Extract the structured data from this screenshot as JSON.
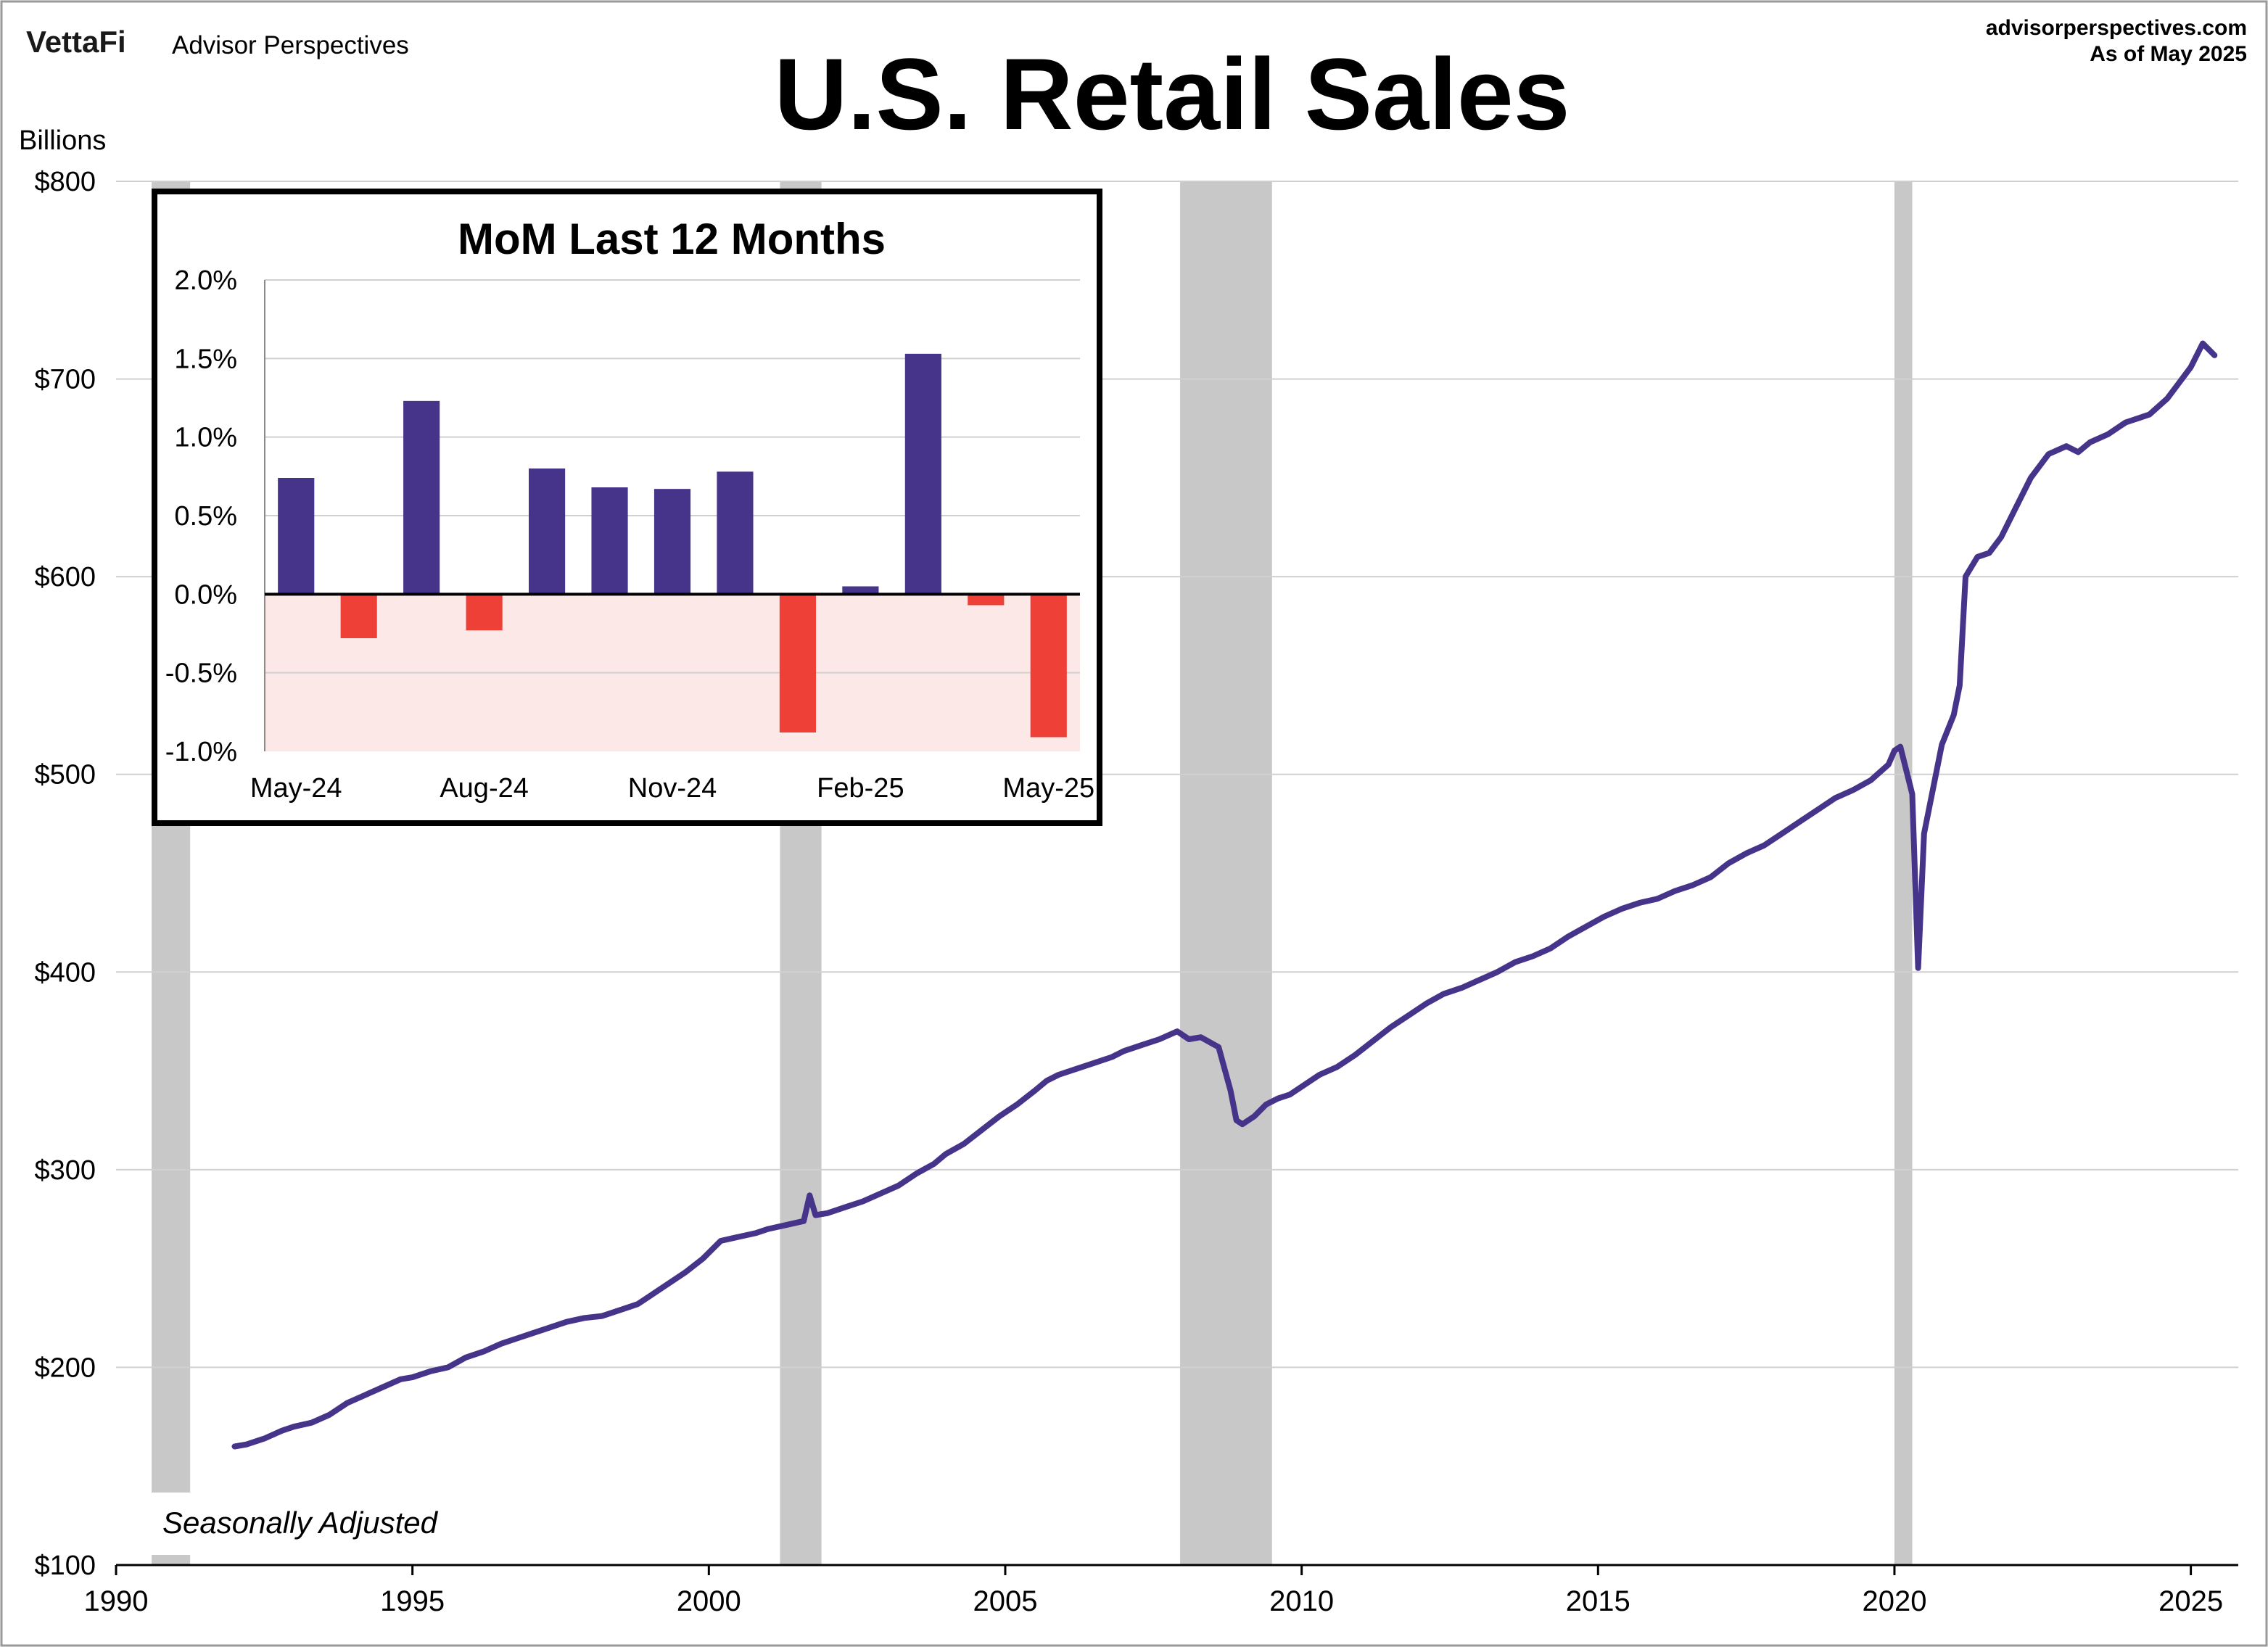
{
  "header": {
    "brand": "VettaFi",
    "brand_sub": "Advisor Perspectives",
    "title": "U.S. Retail Sales",
    "site": "advisorperspectives.com",
    "as_of": "As of May 2025"
  },
  "colors": {
    "line": "#46338a",
    "recession": "#c8c8c8",
    "bar_pos": "#46338a",
    "bar_neg": "#ee4036",
    "neg_zone": "#fde8e8",
    "grid": "#d0d0d0"
  },
  "chart_data": [
    {
      "type": "line",
      "title": "U.S. Retail Sales",
      "ylabel": "Billions",
      "annotation": "Seasonally Adjusted",
      "xlim": [
        1990,
        2025.8
      ],
      "ylim": [
        100,
        800
      ],
      "xticks": [
        "1990",
        "1995",
        "2000",
        "2005",
        "2010",
        "2015",
        "2020",
        "2025"
      ],
      "yticks": [
        "$100",
        "$200",
        "$300",
        "$400",
        "$500",
        "$600",
        "$700",
        "$800"
      ],
      "recessions": [
        [
          1990.6,
          1991.25
        ],
        [
          2001.2,
          2001.9
        ],
        [
          2007.95,
          2009.5
        ],
        [
          2020.0,
          2020.3
        ]
      ],
      "series": [
        {
          "x": [
            1992.0,
            1992.2,
            1992.5,
            1992.8,
            1993.0,
            1993.3,
            1993.6,
            1993.9,
            1994.2,
            1994.5,
            1994.8,
            1995.0,
            1995.3,
            1995.6,
            1995.9,
            1996.2,
            1996.5,
            1996.8,
            1997.0,
            1997.3,
            1997.6,
            1997.9,
            1998.2,
            1998.5,
            1998.8,
            1999.0,
            1999.3,
            1999.6,
            1999.9,
            2000.0,
            2000.2,
            2000.5,
            2000.8,
            2001.0,
            2001.3,
            2001.6,
            2001.7,
            2001.8,
            2002.0,
            2002.3,
            2002.6,
            2002.9,
            2003.2,
            2003.5,
            2003.8,
            2004.0,
            2004.3,
            2004.6,
            2004.9,
            2005.2,
            2005.5,
            2005.7,
            2005.9,
            2006.2,
            2006.5,
            2006.8,
            2007.0,
            2007.3,
            2007.6,
            2007.9,
            2008.1,
            2008.3,
            2008.6,
            2008.8,
            2008.9,
            2009.0,
            2009.2,
            2009.4,
            2009.6,
            2009.8,
            2010.0,
            2010.3,
            2010.6,
            2010.9,
            2011.2,
            2011.5,
            2011.8,
            2012.1,
            2012.4,
            2012.7,
            2013.0,
            2013.3,
            2013.6,
            2013.9,
            2014.2,
            2014.5,
            2014.8,
            2015.1,
            2015.4,
            2015.7,
            2016.0,
            2016.3,
            2016.6,
            2016.9,
            2017.2,
            2017.5,
            2017.8,
            2018.1,
            2018.4,
            2018.7,
            2019.0,
            2019.3,
            2019.6,
            2019.9,
            2020.0,
            2020.1,
            2020.3,
            2020.4,
            2020.5,
            2020.8,
            2021.0,
            2021.1,
            2021.2,
            2021.4,
            2021.6,
            2021.8,
            2022.0,
            2022.3,
            2022.6,
            2022.9,
            2023.1,
            2023.3,
            2023.6,
            2023.9,
            2024.1,
            2024.3,
            2024.6,
            2024.8,
            2025.0,
            2025.2,
            2025.4
          ],
          "y": [
            160,
            161,
            164,
            168,
            170,
            172,
            176,
            182,
            186,
            190,
            194,
            195,
            198,
            200,
            205,
            208,
            212,
            215,
            217,
            220,
            223,
            225,
            226,
            229,
            232,
            236,
            242,
            248,
            255,
            258,
            264,
            266,
            268,
            270,
            272,
            274,
            287,
            277,
            278,
            281,
            284,
            288,
            292,
            298,
            303,
            308,
            313,
            320,
            327,
            333,
            340,
            345,
            348,
            351,
            354,
            357,
            360,
            363,
            366,
            370,
            366,
            367,
            362,
            340,
            325,
            323,
            327,
            333,
            336,
            338,
            342,
            348,
            352,
            358,
            365,
            372,
            378,
            384,
            389,
            392,
            396,
            400,
            405,
            408,
            412,
            418,
            423,
            428,
            432,
            435,
            437,
            441,
            444,
            448,
            455,
            460,
            464,
            470,
            476,
            482,
            488,
            492,
            497,
            505,
            512,
            514,
            490,
            402,
            470,
            515,
            530,
            545,
            600,
            610,
            612,
            620,
            632,
            650,
            662,
            666,
            663,
            668,
            672,
            678,
            680,
            682,
            690,
            698,
            706,
            718,
            712
          ]
        }
      ]
    },
    {
      "type": "bar",
      "title": "MoM Last 12 Months",
      "categories": [
        "May-24",
        "Jun-24",
        "Jul-24",
        "Aug-24",
        "Sep-24",
        "Oct-24",
        "Nov-24",
        "Dec-24",
        "Jan-25",
        "Feb-25",
        "Mar-25",
        "Apr-25",
        "May-25"
      ],
      "xticks": [
        "May-24",
        "Aug-24",
        "Nov-24",
        "Feb-25",
        "May-25"
      ],
      "ylim": [
        -1.0,
        2.0
      ],
      "yticks": [
        "2.0%",
        "1.5%",
        "1.0%",
        "0.5%",
        "0.0%",
        "-0.5%",
        "-1.0%"
      ],
      "values": [
        0.74,
        -0.28,
        1.23,
        -0.23,
        0.8,
        0.68,
        0.67,
        0.78,
        -0.88,
        0.05,
        1.53,
        -0.07,
        -0.91
      ]
    }
  ]
}
